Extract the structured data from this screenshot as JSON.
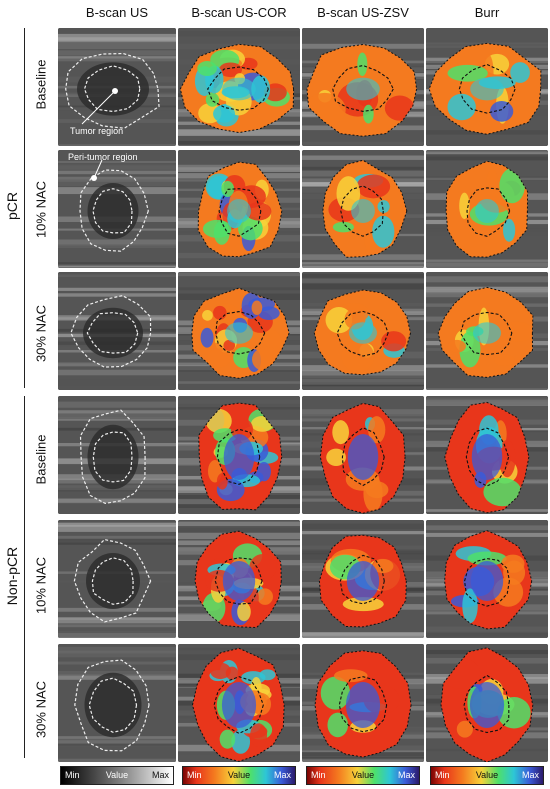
{
  "columns": [
    "B-scan US",
    "B-scan US-COR",
    "B-scan US-ZSV",
    "Burr"
  ],
  "groups": [
    "pCR",
    "Non-pCR"
  ],
  "rows": [
    {
      "group": "pCR",
      "label": "Baseline"
    },
    {
      "group": "pCR",
      "label": "10% NAC"
    },
    {
      "group": "pCR",
      "label": "30% NAC"
    },
    {
      "group": "Non-pCR",
      "label": "Baseline"
    },
    {
      "group": "Non-pCR",
      "label": "10% NAC"
    },
    {
      "group": "Non-pCR",
      "label": "30% NAC"
    }
  ],
  "annotations": {
    "tumor": "Tumor region",
    "peri": "Peri-tumor region"
  },
  "colorbars": [
    {
      "min": "Min",
      "value": "Value",
      "max": "Max",
      "scale": "grayscale"
    },
    {
      "min": "Min",
      "value": "Value",
      "max": "Max",
      "scale": "turbo"
    },
    {
      "min": "Min",
      "value": "Value",
      "max": "Max",
      "scale": "turbo"
    },
    {
      "min": "Min",
      "value": "Value",
      "max": "Max",
      "scale": "turbo"
    }
  ],
  "colors": {
    "gray_dark": "#2a2a2a",
    "gray_light": "#cfcfcf",
    "turbo_red": "#e8361b",
    "turbo_orange": "#f47a1f",
    "turbo_yellow": "#f7d23a",
    "turbo_green": "#4ee06a",
    "turbo_cyan": "#2dc6d6",
    "turbo_blue": "#3a5bd8",
    "turbo_navy": "#2b1a6b"
  }
}
